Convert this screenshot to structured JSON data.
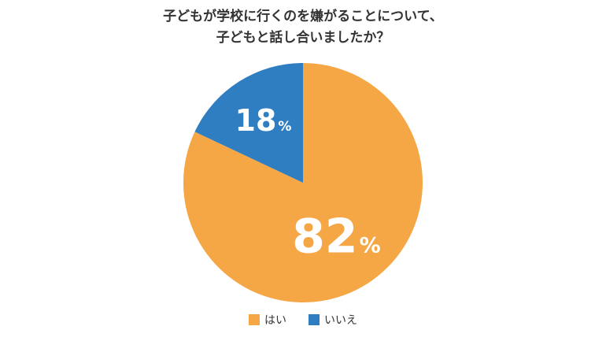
{
  "chart_data": {
    "type": "pie",
    "title": [
      "子どもが学校に行くのを嫌がることについて、",
      "子どもと話し合いましたか？"
    ],
    "slices": [
      {
        "label": "はい",
        "value": 82,
        "display": "82",
        "unit": "%",
        "color": "#f5a645"
      },
      {
        "label": "いいえ",
        "value": 18,
        "display": "18",
        "unit": "%",
        "color": "#2f7ec2"
      }
    ],
    "legend_position": "bottom"
  }
}
